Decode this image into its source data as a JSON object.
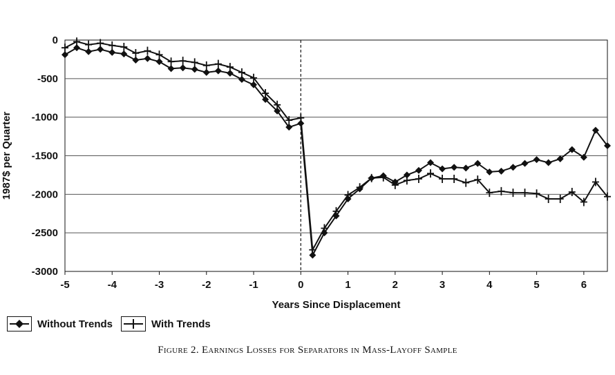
{
  "chart_data": {
    "type": "line",
    "title": "",
    "caption": "Figure 2. Earnings Losses for Separators in Mass-Layoff Sample",
    "xlabel": "Years Since Displacement",
    "ylabel": "1987$ per Quarter",
    "xlim": [
      -5,
      6.5
    ],
    "ylim": [
      -3000,
      0
    ],
    "xticks": [
      "-5",
      "-4",
      "-3",
      "-2",
      "-1",
      "0",
      "1",
      "2",
      "3",
      "4",
      "5",
      "6"
    ],
    "yticks": [
      "0",
      "-500",
      "-1000",
      "-1500",
      "-2000",
      "-2500",
      "-3000"
    ],
    "grid": "horizontal",
    "legend_position": "bottom-left",
    "event_line_x": 0,
    "x": [
      -5,
      -4.75,
      -4.5,
      -4.25,
      -4,
      -3.75,
      -3.5,
      -3.25,
      -3,
      -2.75,
      -2.5,
      -2.25,
      -2,
      -1.75,
      -1.5,
      -1.25,
      -1,
      -0.75,
      -0.5,
      -0.25,
      0,
      0.25,
      0.5,
      0.75,
      1,
      1.25,
      1.5,
      1.75,
      2,
      2.25,
      2.5,
      2.75,
      3,
      3.25,
      3.5,
      3.75,
      4,
      4.25,
      4.5,
      4.75,
      5,
      5.25,
      5.5,
      5.75,
      6,
      6.25,
      6.5
    ],
    "series": [
      {
        "name": "Without Trends",
        "marker": "diamond",
        "values": [
          -190,
          -100,
          -150,
          -120,
          -160,
          -180,
          -260,
          -240,
          -280,
          -370,
          -360,
          -380,
          -420,
          -400,
          -430,
          -510,
          -580,
          -770,
          -920,
          -1130,
          -1080,
          -2790,
          -2500,
          -2280,
          -2060,
          -1930,
          -1790,
          -1760,
          -1840,
          -1750,
          -1690,
          -1590,
          -1670,
          -1650,
          -1660,
          -1600,
          -1710,
          -1700,
          -1650,
          -1600,
          -1550,
          -1590,
          -1540,
          -1420,
          -1520,
          -1170,
          -1370
        ]
      },
      {
        "name": "With Trends",
        "marker": "plus",
        "values": [
          -100,
          -20,
          -60,
          -40,
          -70,
          -90,
          -170,
          -140,
          -190,
          -280,
          -270,
          -290,
          -330,
          -310,
          -350,
          -420,
          -490,
          -690,
          -840,
          -1040,
          -1010,
          -2720,
          -2440,
          -2220,
          -2010,
          -1910,
          -1790,
          -1780,
          -1880,
          -1820,
          -1800,
          -1730,
          -1800,
          -1800,
          -1850,
          -1810,
          -1980,
          -1960,
          -1980,
          -1980,
          -1990,
          -2060,
          -2060,
          -1970,
          -2100,
          -1840,
          -2030
        ]
      }
    ]
  },
  "colors": {
    "line": "#111111",
    "grid": "#555555",
    "background": "#ffffff"
  }
}
